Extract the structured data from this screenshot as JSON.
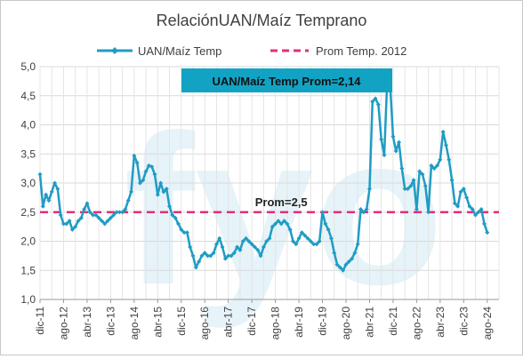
{
  "chart_data": {
    "type": "line",
    "title": "RelaciónUAN/Maíz Temprano",
    "watermark_text": "fyo",
    "legend": {
      "placement": "top-center",
      "entries": [
        "UAN/Maíz Temp",
        "Prom Temp. 2012"
      ]
    },
    "grid": true,
    "ylim": [
      1.0,
      5.0
    ],
    "y_ticks": [
      "1,0",
      "1,5",
      "2,0",
      "2,5",
      "3,0",
      "3,5",
      "4,0",
      "4,5",
      "5,0"
    ],
    "x_tick_labels": [
      "dic-11",
      "ago-12",
      "abr-13",
      "dic-13",
      "ago-14",
      "abr-15",
      "dic-15",
      "ago-16",
      "abr-17",
      "dic-17",
      "ago-18",
      "abr-19",
      "dic-19",
      "ago-20",
      "abr-21",
      "dic-21",
      "ago-22",
      "abr-23",
      "dic-23",
      "ago-24"
    ],
    "x_range_months": [
      "2011-12",
      "2024-12"
    ],
    "series": [
      {
        "name": "UAN/Maíz Temp",
        "color": "#1f9cc4",
        "points": [
          [
            "2011-12",
            3.15
          ],
          [
            "2012-01",
            2.6
          ],
          [
            "2012-02",
            2.8
          ],
          [
            "2012-03",
            2.7
          ],
          [
            "2012-04",
            2.85
          ],
          [
            "2012-05",
            3.0
          ],
          [
            "2012-06",
            2.9
          ],
          [
            "2012-07",
            2.45
          ],
          [
            "2012-08",
            2.3
          ],
          [
            "2012-09",
            2.3
          ],
          [
            "2012-10",
            2.35
          ],
          [
            "2012-11",
            2.2
          ],
          [
            "2012-12",
            2.25
          ],
          [
            "2013-01",
            2.35
          ],
          [
            "2013-02",
            2.4
          ],
          [
            "2013-03",
            2.55
          ],
          [
            "2013-04",
            2.65
          ],
          [
            "2013-05",
            2.5
          ],
          [
            "2013-06",
            2.45
          ],
          [
            "2013-07",
            2.45
          ],
          [
            "2013-08",
            2.4
          ],
          [
            "2013-09",
            2.35
          ],
          [
            "2013-10",
            2.3
          ],
          [
            "2013-11",
            2.35
          ],
          [
            "2013-12",
            2.4
          ],
          [
            "2014-01",
            2.45
          ],
          [
            "2014-02",
            2.5
          ],
          [
            "2014-03",
            2.5
          ],
          [
            "2014-04",
            2.5
          ],
          [
            "2014-05",
            2.55
          ],
          [
            "2014-06",
            2.7
          ],
          [
            "2014-07",
            2.85
          ],
          [
            "2014-08",
            3.47
          ],
          [
            "2014-09",
            3.35
          ],
          [
            "2014-10",
            3.0
          ],
          [
            "2014-11",
            3.05
          ],
          [
            "2014-12",
            3.2
          ],
          [
            "2015-01",
            3.3
          ],
          [
            "2015-02",
            3.28
          ],
          [
            "2015-03",
            3.15
          ],
          [
            "2015-04",
            2.8
          ],
          [
            "2015-05",
            3.0
          ],
          [
            "2015-06",
            2.85
          ],
          [
            "2015-07",
            2.9
          ],
          [
            "2015-08",
            2.6
          ],
          [
            "2015-09",
            2.45
          ],
          [
            "2015-10",
            2.4
          ],
          [
            "2015-11",
            2.3
          ],
          [
            "2015-12",
            2.2
          ],
          [
            "2016-01",
            2.15
          ],
          [
            "2016-02",
            2.15
          ],
          [
            "2016-03",
            1.9
          ],
          [
            "2016-04",
            1.75
          ],
          [
            "2016-05",
            1.55
          ],
          [
            "2016-06",
            1.65
          ],
          [
            "2016-07",
            1.75
          ],
          [
            "2016-08",
            1.8
          ],
          [
            "2016-09",
            1.75
          ],
          [
            "2016-10",
            1.75
          ],
          [
            "2016-11",
            1.8
          ],
          [
            "2016-12",
            1.95
          ],
          [
            "2017-01",
            2.05
          ],
          [
            "2017-02",
            1.9
          ],
          [
            "2017-03",
            1.7
          ],
          [
            "2017-04",
            1.75
          ],
          [
            "2017-05",
            1.75
          ],
          [
            "2017-06",
            1.8
          ],
          [
            "2017-07",
            1.9
          ],
          [
            "2017-08",
            1.85
          ],
          [
            "2017-09",
            2.0
          ],
          [
            "2017-10",
            2.05
          ],
          [
            "2017-11",
            2.0
          ],
          [
            "2017-12",
            1.95
          ],
          [
            "2018-01",
            1.9
          ],
          [
            "2018-02",
            1.85
          ],
          [
            "2018-03",
            1.75
          ],
          [
            "2018-04",
            1.9
          ],
          [
            "2018-05",
            2.0
          ],
          [
            "2018-06",
            2.05
          ],
          [
            "2018-07",
            2.25
          ],
          [
            "2018-08",
            2.3
          ],
          [
            "2018-09",
            2.35
          ],
          [
            "2018-10",
            2.3
          ],
          [
            "2018-11",
            2.35
          ],
          [
            "2018-12",
            2.3
          ],
          [
            "2019-01",
            2.2
          ],
          [
            "2019-02",
            2.0
          ],
          [
            "2019-03",
            1.95
          ],
          [
            "2019-04",
            2.05
          ],
          [
            "2019-05",
            2.15
          ],
          [
            "2019-06",
            2.1
          ],
          [
            "2019-07",
            2.05
          ],
          [
            "2019-08",
            2.0
          ],
          [
            "2019-09",
            1.95
          ],
          [
            "2019-10",
            1.95
          ],
          [
            "2019-11",
            2.0
          ],
          [
            "2019-12",
            2.5
          ],
          [
            "2020-01",
            2.3
          ],
          [
            "2020-02",
            2.2
          ],
          [
            "2020-03",
            2.05
          ],
          [
            "2020-04",
            1.8
          ],
          [
            "2020-05",
            1.6
          ],
          [
            "2020-06",
            1.55
          ],
          [
            "2020-07",
            1.5
          ],
          [
            "2020-08",
            1.6
          ],
          [
            "2020-09",
            1.65
          ],
          [
            "2020-10",
            1.7
          ],
          [
            "2020-11",
            1.8
          ],
          [
            "2020-12",
            1.95
          ],
          [
            "2021-01",
            2.55
          ],
          [
            "2021-02",
            2.5
          ],
          [
            "2021-03",
            2.55
          ],
          [
            "2021-04",
            2.9
          ],
          [
            "2021-05",
            4.4
          ],
          [
            "2021-06",
            4.45
          ],
          [
            "2021-07",
            4.35
          ],
          [
            "2021-08",
            3.75
          ],
          [
            "2021-09",
            3.48
          ],
          [
            "2021-10",
            4.75
          ],
          [
            "2021-11",
            4.7
          ],
          [
            "2021-12",
            3.8
          ],
          [
            "2022-01",
            3.55
          ],
          [
            "2022-02",
            3.7
          ],
          [
            "2022-03",
            3.25
          ],
          [
            "2022-04",
            2.9
          ],
          [
            "2022-05",
            2.9
          ],
          [
            "2022-06",
            2.95
          ],
          [
            "2022-07",
            3.05
          ],
          [
            "2022-08",
            2.55
          ],
          [
            "2022-09",
            3.2
          ],
          [
            "2022-10",
            3.15
          ],
          [
            "2022-11",
            2.95
          ],
          [
            "2022-12",
            2.5
          ],
          [
            "2023-01",
            3.3
          ],
          [
            "2023-02",
            3.25
          ],
          [
            "2023-03",
            3.3
          ],
          [
            "2023-04",
            3.4
          ],
          [
            "2023-05",
            3.88
          ],
          [
            "2023-06",
            3.65
          ],
          [
            "2023-07",
            3.4
          ],
          [
            "2023-08",
            3.05
          ],
          [
            "2023-09",
            2.65
          ],
          [
            "2023-10",
            2.6
          ],
          [
            "2023-11",
            2.85
          ],
          [
            "2023-12",
            2.9
          ],
          [
            "2024-01",
            2.75
          ],
          [
            "2024-02",
            2.6
          ],
          [
            "2024-03",
            2.55
          ],
          [
            "2024-04",
            2.45
          ],
          [
            "2024-05",
            2.5
          ],
          [
            "2024-06",
            2.55
          ],
          [
            "2024-07",
            2.3
          ],
          [
            "2024-08",
            2.15
          ]
        ]
      },
      {
        "name": "Prom Temp. 2012",
        "color": "#e0307a",
        "style": "dashed",
        "value": 2.5
      }
    ],
    "annotations": [
      {
        "text": "Prom=2,5",
        "x": "2018-10",
        "y": 2.6
      }
    ],
    "callout_box": {
      "text": "UAN/Maíz Temp Prom=2,14",
      "color": "#12a3c4"
    }
  }
}
